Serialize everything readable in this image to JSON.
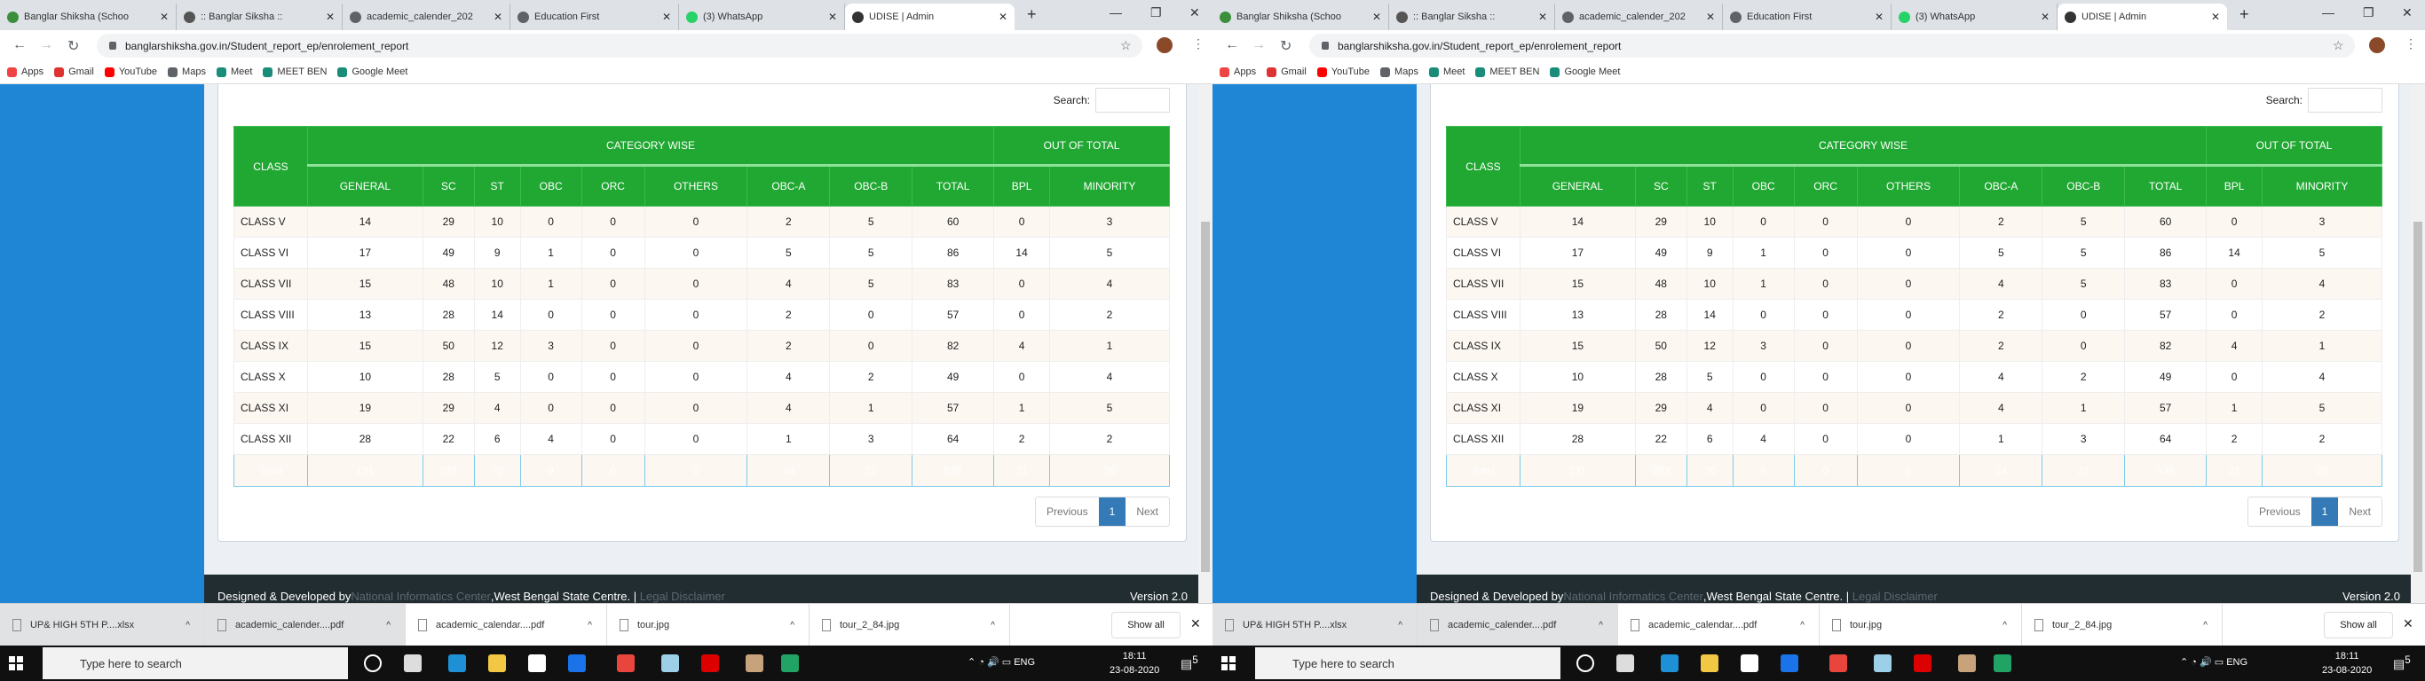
{
  "browser": {
    "tabs": [
      {
        "title": "Banglar Shiksha (Schoo",
        "icon": "seal-icon"
      },
      {
        "title": ":: Banglar Siksha ::",
        "icon": "site-icon"
      },
      {
        "title": "academic_calender_202",
        "icon": "globe-icon"
      },
      {
        "title": "Education First",
        "icon": "globe-icon"
      },
      {
        "title": "(3) WhatsApp",
        "icon": "whatsapp-icon"
      },
      {
        "title": "UDISE | Admin",
        "icon": "udise-icon",
        "active": true
      }
    ],
    "url": "banglarshiksha.gov.in/Student_report_ep/enrolement_report",
    "bookmarks": [
      "Apps",
      "Gmail",
      "YouTube",
      "Maps",
      "Meet",
      "MEET BEN",
      "Google Meet"
    ]
  },
  "page": {
    "search_label": "Search:",
    "search_value": "",
    "table": {
      "class_header": "CLASS",
      "group_headers": [
        "CATEGORY WISE",
        "OUT OF TOTAL"
      ],
      "columns": [
        "GENERAL",
        "SC",
        "ST",
        "OBC",
        "ORC",
        "OTHERS",
        "OBC-A",
        "OBC-B",
        "TOTAL",
        "BPL",
        "MINORITY"
      ],
      "rows": [
        [
          "CLASS V",
          "14",
          "29",
          "10",
          "0",
          "0",
          "0",
          "2",
          "5",
          "60",
          "0",
          "3"
        ],
        [
          "CLASS VI",
          "17",
          "49",
          "9",
          "1",
          "0",
          "0",
          "5",
          "5",
          "86",
          "14",
          "5"
        ],
        [
          "CLASS VII",
          "15",
          "48",
          "10",
          "1",
          "0",
          "0",
          "4",
          "5",
          "83",
          "0",
          "4"
        ],
        [
          "CLASS VIII",
          "13",
          "28",
          "14",
          "0",
          "0",
          "0",
          "2",
          "0",
          "57",
          "0",
          "2"
        ],
        [
          "CLASS IX",
          "15",
          "50",
          "12",
          "3",
          "0",
          "0",
          "2",
          "0",
          "82",
          "4",
          "1"
        ],
        [
          "CLASS X",
          "10",
          "28",
          "5",
          "0",
          "0",
          "0",
          "4",
          "2",
          "49",
          "0",
          "4"
        ],
        [
          "CLASS XI",
          "19",
          "29",
          "4",
          "0",
          "0",
          "0",
          "4",
          "1",
          "57",
          "1",
          "5"
        ],
        [
          "CLASS XII",
          "28",
          "22",
          "6",
          "4",
          "0",
          "0",
          "1",
          "3",
          "64",
          "2",
          "2"
        ]
      ],
      "total": [
        "Total",
        "131",
        "283",
        "70",
        "9",
        "0",
        "0",
        "24",
        "21",
        "538",
        "21",
        "26"
      ]
    },
    "pagination": {
      "previous": "Previous",
      "current": "1",
      "next": "Next"
    },
    "footer": {
      "prefix": "Designed & Developed by ",
      "nic": "National Informatics Center",
      "centre": ",West Bengal State Centre.",
      "sep": " | ",
      "disclaimer": "Legal Disclaimer",
      "version": "Version 2.0"
    }
  },
  "downloads": {
    "items": [
      "UP& HIGH 5TH P....xlsx",
      "academic_calender....pdf",
      "academic_calendar....pdf",
      "tour.jpg",
      "tour_2_84.jpg"
    ],
    "show_all": "Show all"
  },
  "taskbar": {
    "search_placeholder": "Type here to search",
    "lang": "ENG",
    "time": "18:11",
    "date": "23-08-2020",
    "notifications": "5"
  },
  "colors": {
    "header_green": "#20a832",
    "total_blue": "#4fb5e1",
    "sidebar_blue": "#1f86d6",
    "footer_dark": "#222d32",
    "pager_active": "#337ab7"
  }
}
